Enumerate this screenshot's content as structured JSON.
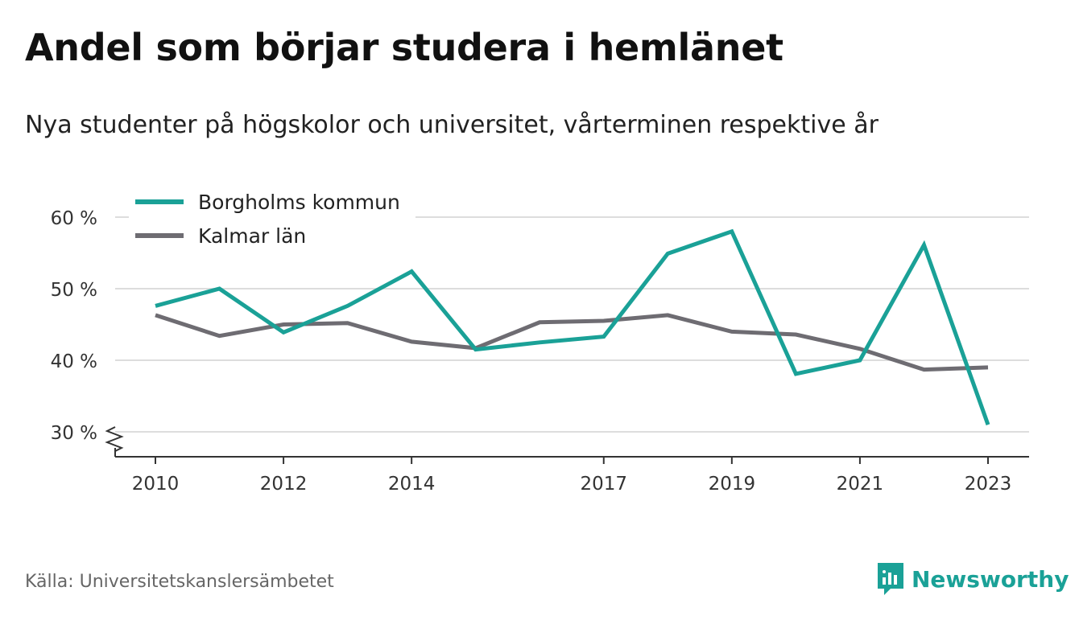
{
  "title": "Andel som börjar studera i hemlänet",
  "subtitle": "Nya studenter på högskolor och universitet, vårterminen respektive år",
  "source": "Källa: Universitetskanslersämbetet",
  "brand": {
    "name": "Newsworthy",
    "icon": "newsworthy-logo-icon",
    "color": "#1aa197"
  },
  "chart_data": {
    "type": "line",
    "x": [
      2010,
      2011,
      2012,
      2013,
      2014,
      2015,
      2016,
      2017,
      2018,
      2019,
      2020,
      2021,
      2022,
      2023
    ],
    "x_ticks": [
      "2010",
      "2012",
      "2014",
      "2017",
      "2019",
      "2021",
      "2023"
    ],
    "y_ticks": [
      "30 %",
      "40 %",
      "50 %",
      "60 %"
    ],
    "y_tick_values": [
      30,
      40,
      50,
      60
    ],
    "ylim": [
      30,
      60
    ],
    "y_axis_break": true,
    "grid": true,
    "legend": "top-left",
    "series": [
      {
        "name": "Borgholms kommun",
        "color": "#1aa197",
        "values": [
          47.6,
          50.0,
          43.9,
          47.6,
          52.4,
          41.5,
          42.5,
          43.3,
          54.9,
          58.0,
          38.1,
          40.0,
          56.1,
          31.0
        ]
      },
      {
        "name": "Kalmar län",
        "color": "#6e6c72",
        "values": [
          46.3,
          43.4,
          45.0,
          45.2,
          42.6,
          41.7,
          45.3,
          45.5,
          46.3,
          44.0,
          43.6,
          41.6,
          38.7,
          39.0
        ]
      }
    ]
  }
}
